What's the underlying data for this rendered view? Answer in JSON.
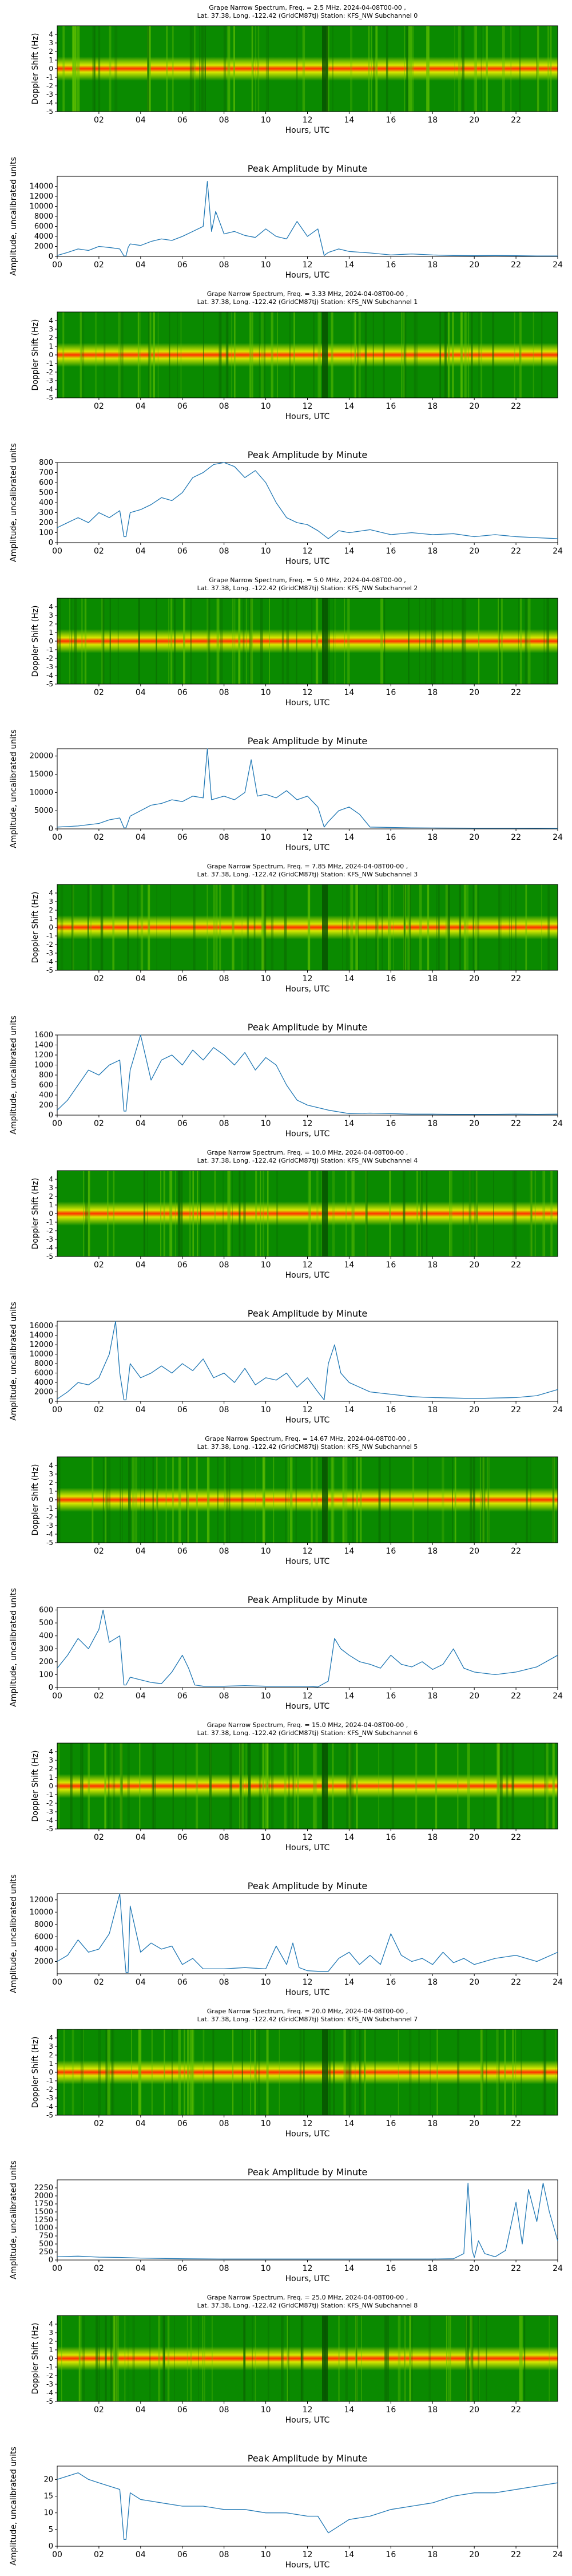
{
  "figure": {
    "spectrogram": {
      "title_line2": "Lat. 37.38, Long. -122.42 (GridCM87tj) Station: KFS_NW Subchannel",
      "xlabel": "Hours, UTC",
      "ylabel": "Doppler Shift (Hz)",
      "yticks": [
        "4",
        "3",
        "2",
        "1",
        "0",
        "-1",
        "-2",
        "-3",
        "-4",
        "-5"
      ],
      "xticks": [
        "02",
        "04",
        "06",
        "08",
        "10",
        "12",
        "14",
        "16",
        "18",
        "20",
        "22"
      ],
      "colors": {
        "low": "#0a8a00",
        "mid": "#d8e800",
        "high": "#ff3000"
      }
    },
    "amplitude": {
      "title": "Peak Amplitude by Minute",
      "xlabel": "Hours, UTC",
      "ylabel": "Amplitude, uncalibrated units",
      "xticks": [
        "00",
        "02",
        "04",
        "06",
        "08",
        "10",
        "12",
        "14",
        "16",
        "18",
        "20",
        "22",
        "24"
      ],
      "line_color": "#1f77b4"
    }
  },
  "chart_data": [
    {
      "type": "heatmap",
      "title": "Grape Narrow Spectrum, Freq. = 2.5 MHz, 2024-04-08T00-00 ,",
      "subchannel": "0",
      "freq_mhz": 2.5,
      "date": "2024-04-08",
      "x_range_hours": [
        0,
        24
      ],
      "ylim": [
        -5,
        5
      ]
    },
    {
      "type": "line",
      "title": "Peak Amplitude by Minute",
      "subchannel": "0",
      "xlim": [
        0,
        24
      ],
      "ylim": [
        0,
        16000
      ],
      "yticks": [
        0,
        2000,
        4000,
        6000,
        8000,
        10000,
        12000,
        14000
      ],
      "x": [
        0,
        0.5,
        1,
        1.5,
        2,
        2.5,
        3,
        3.2,
        3.3,
        3.4,
        3.5,
        4,
        4.5,
        5,
        5.5,
        6,
        6.5,
        7,
        7.2,
        7.4,
        7.6,
        8,
        8.5,
        9,
        9.5,
        10,
        10.5,
        11,
        11.5,
        12,
        12.5,
        12.8,
        13,
        13.5,
        14,
        15,
        16,
        17,
        18,
        19,
        20,
        21,
        22,
        23,
        24
      ],
      "values": [
        200,
        800,
        1500,
        1200,
        2000,
        1800,
        1500,
        100,
        100,
        1800,
        2500,
        2200,
        3000,
        3500,
        3200,
        4000,
        5000,
        6000,
        15000,
        5000,
        9000,
        4500,
        5000,
        4200,
        3800,
        5500,
        4000,
        3500,
        7000,
        4000,
        5500,
        200,
        800,
        1500,
        1000,
        700,
        300,
        500,
        300,
        200,
        150,
        200,
        150,
        100,
        100
      ]
    },
    {
      "type": "heatmap",
      "title": "Grape Narrow Spectrum, Freq. = 3.33 MHz, 2024-04-08T00-00 ,",
      "subchannel": "1",
      "freq_mhz": 3.33,
      "date": "2024-04-08",
      "x_range_hours": [
        0,
        24
      ],
      "ylim": [
        -5,
        5
      ]
    },
    {
      "type": "line",
      "title": "Peak Amplitude by Minute",
      "subchannel": "1",
      "xlim": [
        0,
        24
      ],
      "ylim": [
        0,
        800
      ],
      "yticks": [
        0,
        100,
        200,
        300,
        400,
        500,
        600,
        700,
        800
      ],
      "x": [
        0,
        0.5,
        1,
        1.5,
        2,
        2.5,
        3,
        3.2,
        3.3,
        3.5,
        4,
        4.5,
        5,
        5.5,
        6,
        6.5,
        7,
        7.5,
        8,
        8.5,
        9,
        9.5,
        10,
        10.5,
        11,
        11.5,
        12,
        12.5,
        13,
        13.5,
        14,
        15,
        16,
        17,
        18,
        19,
        20,
        21,
        22,
        23,
        24
      ],
      "values": [
        150,
        200,
        250,
        200,
        300,
        250,
        320,
        60,
        60,
        300,
        330,
        380,
        450,
        420,
        500,
        650,
        700,
        780,
        820,
        760,
        650,
        720,
        600,
        400,
        250,
        200,
        180,
        120,
        40,
        120,
        100,
        130,
        80,
        100,
        80,
        90,
        60,
        80,
        60,
        50,
        40
      ]
    },
    {
      "type": "heatmap",
      "title": "Grape Narrow Spectrum, Freq. = 5.0 MHz, 2024-04-08T00-00 ,",
      "subchannel": "2",
      "freq_mhz": 5.0,
      "date": "2024-04-08",
      "x_range_hours": [
        0,
        24
      ],
      "ylim": [
        -5,
        5
      ]
    },
    {
      "type": "line",
      "title": "Peak Amplitude by Minute",
      "subchannel": "2",
      "xlim": [
        0,
        24
      ],
      "ylim": [
        0,
        22000
      ],
      "yticks": [
        0,
        5000,
        10000,
        15000,
        20000
      ],
      "x": [
        0,
        1,
        2,
        2.5,
        3,
        3.2,
        3.3,
        3.5,
        4,
        4.5,
        5,
        5.5,
        6,
        6.5,
        7,
        7.2,
        7.4,
        8,
        8.5,
        9,
        9.3,
        9.6,
        10,
        10.5,
        11,
        11.5,
        12,
        12.5,
        12.8,
        13,
        13.5,
        14,
        14.5,
        15,
        16,
        17,
        18,
        20,
        22,
        24
      ],
      "values": [
        500,
        800,
        1500,
        2500,
        3000,
        300,
        300,
        3500,
        5000,
        6500,
        7000,
        8000,
        7500,
        9000,
        8500,
        22000,
        8000,
        9000,
        8000,
        10000,
        19000,
        9000,
        9500,
        8500,
        10500,
        8000,
        9000,
        6000,
        500,
        2000,
        5000,
        6000,
        4000,
        500,
        400,
        300,
        250,
        200,
        200,
        150
      ]
    },
    {
      "type": "heatmap",
      "title": "Grape Narrow Spectrum, Freq. = 7.85 MHz, 2024-04-08T00-00 ,",
      "subchannel": "3",
      "freq_mhz": 7.85,
      "date": "2024-04-08",
      "x_range_hours": [
        0,
        24
      ],
      "ylim": [
        -5,
        5
      ]
    },
    {
      "type": "line",
      "title": "Peak Amplitude by Minute",
      "subchannel": "3",
      "xlim": [
        0,
        24
      ],
      "ylim": [
        0,
        1600
      ],
      "yticks": [
        0,
        200,
        400,
        600,
        800,
        1000,
        1200,
        1400,
        1600
      ],
      "x": [
        0,
        0.5,
        1,
        1.5,
        2,
        2.5,
        3,
        3.2,
        3.3,
        3.5,
        4,
        4.5,
        5,
        5.5,
        6,
        6.5,
        7,
        7.5,
        8,
        8.5,
        9,
        9.5,
        10,
        10.5,
        11,
        11.5,
        12,
        13,
        14,
        15,
        16,
        17,
        18,
        19,
        20,
        21,
        22,
        23,
        24
      ],
      "values": [
        100,
        300,
        600,
        900,
        800,
        1000,
        1100,
        80,
        80,
        900,
        1600,
        700,
        1100,
        1200,
        1000,
        1300,
        1100,
        1350,
        1200,
        1000,
        1250,
        900,
        1150,
        1000,
        600,
        300,
        200,
        100,
        30,
        40,
        30,
        20,
        20,
        15,
        15,
        15,
        20,
        15,
        20
      ]
    },
    {
      "type": "heatmap",
      "title": "Grape Narrow Spectrum, Freq. = 10.0 MHz, 2024-04-08T00-00 ,",
      "subchannel": "4",
      "freq_mhz": 10.0,
      "date": "2024-04-08",
      "x_range_hours": [
        0,
        24
      ],
      "ylim": [
        -5,
        5
      ]
    },
    {
      "type": "line",
      "title": "Peak Amplitude by Minute",
      "subchannel": "4",
      "xlim": [
        0,
        24
      ],
      "ylim": [
        0,
        17000
      ],
      "yticks": [
        0,
        2000,
        4000,
        6000,
        8000,
        10000,
        12000,
        14000,
        16000
      ],
      "x": [
        0,
        0.5,
        1,
        1.5,
        2,
        2.5,
        2.8,
        3,
        3.2,
        3.3,
        3.5,
        4,
        4.5,
        5,
        5.5,
        6,
        6.5,
        7,
        7.5,
        8,
        8.5,
        9,
        9.5,
        10,
        10.5,
        11,
        11.5,
        12,
        12.5,
        12.8,
        13,
        13.3,
        13.6,
        14,
        14.5,
        15,
        16,
        17,
        18,
        19,
        20,
        21,
        22,
        23,
        24
      ],
      "values": [
        500,
        2000,
        4000,
        3500,
        5000,
        10000,
        17000,
        6000,
        300,
        300,
        8000,
        5000,
        6000,
        7500,
        6000,
        8000,
        6500,
        9000,
        5000,
        6000,
        4000,
        7000,
        3500,
        5000,
        4500,
        6000,
        3000,
        5000,
        2000,
        300,
        8000,
        12000,
        6000,
        4000,
        3000,
        2000,
        1500,
        1000,
        800,
        700,
        600,
        700,
        800,
        1200,
        2500
      ]
    },
    {
      "type": "heatmap",
      "title": "Grape Narrow Spectrum, Freq. = 14.67 MHz, 2024-04-08T00-00 ,",
      "subchannel": "5",
      "freq_mhz": 14.67,
      "date": "2024-04-08",
      "x_range_hours": [
        0,
        24
      ],
      "ylim": [
        -5,
        5
      ]
    },
    {
      "type": "line",
      "title": "Peak Amplitude by Minute",
      "subchannel": "5",
      "xlim": [
        0,
        24
      ],
      "ylim": [
        0,
        620
      ],
      "yticks": [
        0,
        100,
        200,
        300,
        400,
        500,
        600
      ],
      "x": [
        0,
        0.5,
        1,
        1.5,
        2,
        2.2,
        2.5,
        3,
        3.2,
        3.3,
        3.5,
        4,
        4.5,
        5,
        5.5,
        6,
        6.3,
        6.6,
        7,
        8,
        9,
        10,
        11,
        12,
        12.5,
        13,
        13.3,
        13.6,
        14,
        14.5,
        15,
        15.5,
        16,
        16.5,
        17,
        17.5,
        18,
        18.5,
        19,
        19.5,
        20,
        21,
        22,
        23,
        24
      ],
      "values": [
        150,
        250,
        380,
        300,
        450,
        600,
        350,
        400,
        20,
        20,
        80,
        60,
        40,
        30,
        120,
        250,
        150,
        20,
        10,
        10,
        15,
        10,
        10,
        10,
        5,
        50,
        380,
        300,
        250,
        200,
        180,
        150,
        250,
        180,
        160,
        200,
        140,
        180,
        300,
        150,
        120,
        100,
        120,
        160,
        250
      ]
    },
    {
      "type": "heatmap",
      "title": "Grape Narrow Spectrum, Freq. = 15.0 MHz, 2024-04-08T00-00 ,",
      "subchannel": "6",
      "freq_mhz": 15.0,
      "date": "2024-04-08",
      "x_range_hours": [
        0,
        24
      ],
      "ylim": [
        -5,
        5
      ]
    },
    {
      "type": "line",
      "title": "Peak Amplitude by Minute",
      "subchannel": "6",
      "xlim": [
        0,
        24
      ],
      "ylim": [
        0,
        13000
      ],
      "yticks": [
        2000,
        4000,
        6000,
        8000,
        10000,
        12000
      ],
      "x": [
        0,
        0.5,
        1,
        1.5,
        2,
        2.5,
        3,
        3.2,
        3.3,
        3.4,
        3.5,
        4,
        4.5,
        5,
        5.5,
        6,
        6.5,
        7,
        8,
        9,
        10,
        10.5,
        11,
        11.3,
        11.6,
        12,
        12.5,
        13,
        13.5,
        14,
        14.5,
        15,
        15.5,
        16,
        16.5,
        17,
        17.5,
        18,
        18.5,
        19,
        19.5,
        20,
        21,
        22,
        23,
        24
      ],
      "values": [
        2000,
        3000,
        5500,
        3500,
        4000,
        6500,
        13000,
        4000,
        200,
        200,
        11000,
        3500,
        5000,
        4000,
        4500,
        1500,
        2500,
        800,
        800,
        1000,
        800,
        4500,
        1500,
        5000,
        1000,
        500,
        400,
        400,
        2500,
        3500,
        1500,
        3000,
        1500,
        6500,
        3000,
        2000,
        2500,
        1500,
        3500,
        1800,
        2500,
        1500,
        2500,
        3000,
        2000,
        3500
      ]
    },
    {
      "type": "heatmap",
      "title": "Grape Narrow Spectrum, Freq. = 20.0 MHz, 2024-04-08T00-00 ,",
      "subchannel": "7",
      "freq_mhz": 20.0,
      "date": "2024-04-08",
      "x_range_hours": [
        0,
        24
      ],
      "ylim": [
        -5,
        5
      ]
    },
    {
      "type": "line",
      "title": "Peak Amplitude by Minute",
      "subchannel": "7",
      "xlim": [
        0,
        24
      ],
      "ylim": [
        0,
        2500
      ],
      "yticks": [
        0,
        250,
        500,
        750,
        1000,
        1250,
        1500,
        1750,
        2000,
        2250
      ],
      "x": [
        0,
        1,
        2,
        3,
        4,
        5,
        6,
        8,
        10,
        12,
        14,
        16,
        18,
        19,
        19.5,
        19.7,
        19.9,
        20,
        20.2,
        20.5,
        21,
        21.5,
        22,
        22.3,
        22.6,
        23,
        23.3,
        23.6,
        24
      ],
      "values": [
        100,
        120,
        90,
        80,
        60,
        50,
        40,
        30,
        30,
        30,
        30,
        30,
        30,
        40,
        200,
        2400,
        300,
        80,
        600,
        200,
        100,
        300,
        1800,
        500,
        2200,
        1200,
        2400,
        1500,
        600
      ]
    },
    {
      "type": "heatmap",
      "title": "Grape Narrow Spectrum, Freq. = 25.0 MHz, 2024-04-08T00-00 ,",
      "subchannel": "8",
      "freq_mhz": 25.0,
      "date": "2024-04-08",
      "x_range_hours": [
        0,
        24
      ],
      "ylim": [
        -5,
        5
      ]
    },
    {
      "type": "line",
      "title": "Peak Amplitude by Minute",
      "subchannel": "8",
      "xlim": [
        0,
        24
      ],
      "ylim": [
        0,
        24
      ],
      "yticks": [
        0,
        5,
        10,
        15,
        20
      ],
      "x": [
        0,
        0.5,
        1,
        1.5,
        2,
        2.5,
        3,
        3.2,
        3.3,
        3.5,
        4,
        5,
        6,
        7,
        8,
        9,
        10,
        11,
        12,
        12.5,
        13,
        13.5,
        14,
        15,
        16,
        17,
        18,
        19,
        20,
        21,
        22,
        23,
        24
      ],
      "values": [
        20,
        21,
        22,
        20,
        19,
        18,
        17,
        2,
        2,
        16,
        14,
        13,
        12,
        12,
        11,
        11,
        10,
        10,
        9,
        9,
        4,
        6,
        8,
        9,
        11,
        12,
        13,
        15,
        16,
        16,
        17,
        18,
        19
      ]
    }
  ]
}
